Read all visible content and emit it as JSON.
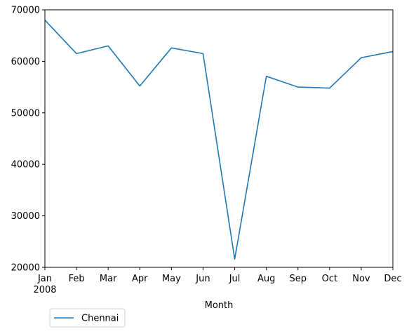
{
  "chart_data": {
    "type": "line",
    "x": [
      "Jan",
      "Feb",
      "Mar",
      "Apr",
      "May",
      "Jun",
      "Jul",
      "Aug",
      "Sep",
      "Oct",
      "Nov",
      "Dec"
    ],
    "x_year_label": "2008",
    "xlabel": "Month",
    "ylabel": "",
    "ylim": [
      20000,
      70000
    ],
    "yticks": [
      20000,
      30000,
      40000,
      50000,
      60000,
      70000
    ],
    "grid": false,
    "legend_position": "lower-left, below axes",
    "series": [
      {
        "name": "Chennai",
        "color": "#1f77b4",
        "values": [
          68000,
          61500,
          63000,
          55200,
          62600,
          61500,
          21600,
          57100,
          55000,
          54800,
          60700,
          61900
        ]
      }
    ]
  }
}
